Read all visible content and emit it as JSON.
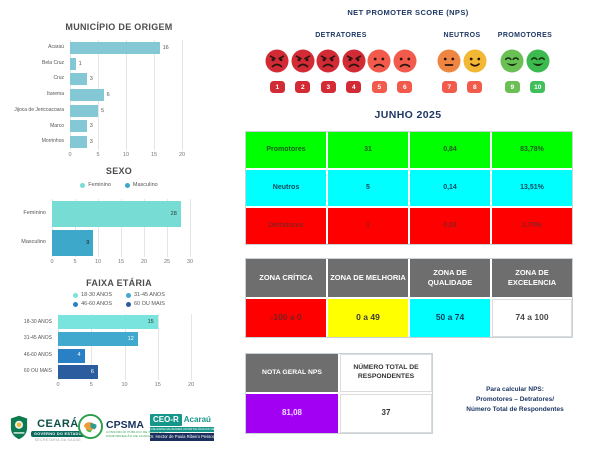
{
  "nps_header": {
    "title": "NET PROMOTER SCORE (NPS)",
    "title_color": "#1f3864",
    "groups": [
      {
        "label": "DETRATORES",
        "faces": [
          {
            "color": "#d22b35",
            "type": "angry"
          },
          {
            "color": "#d22b35",
            "type": "angry"
          },
          {
            "color": "#d22b35",
            "type": "angry"
          },
          {
            "color": "#d22b35",
            "type": "angry"
          },
          {
            "color": "#f25b4b",
            "type": "sad"
          },
          {
            "color": "#f25b4b",
            "type": "sad"
          }
        ],
        "badges": [
          {
            "n": "1",
            "color": "#d22b35"
          },
          {
            "n": "2",
            "color": "#d22b35"
          },
          {
            "n": "3",
            "color": "#d22b35"
          },
          {
            "n": "4",
            "color": "#d22b35"
          },
          {
            "n": "5",
            "color": "#f25b4b"
          },
          {
            "n": "6",
            "color": "#f25b4b"
          }
        ]
      },
      {
        "label": "NEUTROS",
        "faces": [
          {
            "color": "#ee8540",
            "type": "neutral"
          },
          {
            "color": "#f2b733",
            "type": "slight-smile"
          }
        ],
        "badges": [
          {
            "n": "7",
            "color": "#f25b4b"
          },
          {
            "n": "8",
            "color": "#f25b4b"
          }
        ]
      },
      {
        "label": "PROMOTORES",
        "faces": [
          {
            "color": "#6abf55",
            "type": "happy"
          },
          {
            "color": "#3cb94f",
            "type": "happy"
          }
        ],
        "badges": [
          {
            "n": "9",
            "color": "#6cbf55"
          },
          {
            "n": "10",
            "color": "#40bf5c"
          }
        ]
      }
    ]
  },
  "month_title": "JUNHO 2025",
  "junho_table": {
    "rows": [
      {
        "cells": [
          "Promotores",
          "31",
          "0,84",
          "83,78%"
        ],
        "bg": "#00ff00",
        "color": "#1f5c1f"
      },
      {
        "cells": [
          "Neutros",
          "5",
          "0,14",
          "13,51%"
        ],
        "bg": "#00ffff",
        "color": "#0e4a5e"
      },
      {
        "cells": [
          "Detratores",
          "1",
          "0,03",
          "2,70%"
        ],
        "bg": "#ff0000",
        "color": "#8c1f1f"
      }
    ]
  },
  "zone_table": {
    "header_bg": "#6e6e6e",
    "header_color": "#ffffff",
    "headers": [
      "ZONA CRÍTICA",
      "ZONA DE MELHORIA",
      "ZONA DE QUALIDADE",
      "ZONA DE EXCELENCIA"
    ],
    "cells": [
      {
        "text": "-100 a 0",
        "bg": "#ff0000",
        "color": "#7a2020"
      },
      {
        "text": "0 a 49",
        "bg": "#ffff00",
        "color": "#3a3a3a"
      },
      {
        "text": "50 a 74",
        "bg": "#00ffff",
        "color": "#123a5c"
      },
      {
        "text": "74 a 100",
        "bg": "#ffffff",
        "color": "#4a4a4a"
      }
    ]
  },
  "nps_table": {
    "headers": [
      {
        "text": "NOTA GERAL NPS",
        "bg": "#6e6e6e",
        "color": "#ffffff"
      },
      {
        "text": "NÚMERO TOTAL DE RESPONDENTES",
        "bg": "#ffffff",
        "color": "#333333"
      }
    ],
    "values": [
      {
        "text": "81,08",
        "bg": "#a100f2",
        "color": "#efdcff"
      },
      {
        "text": "37",
        "bg": "#ffffff",
        "color": "#333333"
      }
    ]
  },
  "nps_note": {
    "color": "#1f3864",
    "lines": [
      "Para calcular NPS:",
      "Promotores – Detratores/",
      "Número Total de Respondentes"
    ]
  },
  "chart_data": [
    {
      "type": "bar",
      "orientation": "horizontal",
      "title": "MUNICÍPIO DE ORIGEM",
      "categories": [
        "Acaraú",
        "Bela Cruz",
        "Cruz",
        "Itarema",
        "Jijoca de Jericoacoara",
        "Marco",
        "Morrinhos"
      ],
      "values": [
        16,
        1,
        3,
        6,
        5,
        3,
        3
      ],
      "bar_color": "#85c8d5",
      "xlim": [
        0,
        20
      ],
      "xticks": [
        0,
        5,
        10,
        15,
        20
      ],
      "grid": true,
      "value_labels": "outside"
    },
    {
      "type": "bar",
      "orientation": "horizontal",
      "title": "SEXO",
      "categories": [
        "Feminino",
        "Masculino"
      ],
      "values": [
        28,
        9
      ],
      "colors": [
        "#76dcd4",
        "#3da8c9"
      ],
      "legend": [
        {
          "label": "Feminino",
          "color": "#76dcd4"
        },
        {
          "label": "Masculino",
          "color": "#3da8c9"
        }
      ],
      "xlim": [
        0,
        30
      ],
      "xticks": [
        0,
        5,
        10,
        15,
        20,
        25,
        30
      ],
      "grid": true,
      "value_labels": "inside",
      "value_colors": [
        "#333333",
        "#1a1a1a"
      ]
    },
    {
      "type": "bar",
      "orientation": "horizontal",
      "title": "FAIXA ETÁRIA",
      "categories": [
        "18-30 ANOS",
        "31-45 ANOS",
        "46-60 ANOS",
        "60 OU MAIS"
      ],
      "values": [
        15,
        12,
        4,
        6
      ],
      "colors": [
        "#79e3dd",
        "#41a9cd",
        "#2a80c4",
        "#2b5d9e"
      ],
      "legend": [
        {
          "label": "18-30 ANOS",
          "color": "#79e3dd"
        },
        {
          "label": "31-45 ANOS",
          "color": "#41a9cd"
        },
        {
          "label": "46-60 ANOS",
          "color": "#2a80c4"
        },
        {
          "label": "60 OU MAIS",
          "color": "#2b5d9e"
        }
      ],
      "xlim": [
        0,
        20
      ],
      "xticks": [
        0,
        5,
        10,
        15,
        20
      ],
      "grid": true,
      "value_labels": "inside",
      "value_colors": [
        "#333333",
        "#ffffff",
        "#ffffff",
        "#ffffff"
      ]
    }
  ],
  "footer": {
    "ceara": {
      "name": "CEARÁ",
      "line1": "GOVERNO DO ESTADO",
      "line2": "SECRETARIA DA SAÚDE"
    },
    "cpsma": {
      "name": "CPSMA",
      "line1": "CONSÓRCIO PÚBLICO DE SAÚDE DA",
      "line2": "MICRORREGIÃO DE ACARAÚ"
    },
    "ceor": {
      "name": "CEO-R",
      "suffix": "Acaraú",
      "line1": "CENTRO DE ESPECIALIDADES ODONTOLÓGICAS REGIONAL",
      "line2": "Dr. Hector de Paula Ribeiro Pessoa"
    }
  }
}
